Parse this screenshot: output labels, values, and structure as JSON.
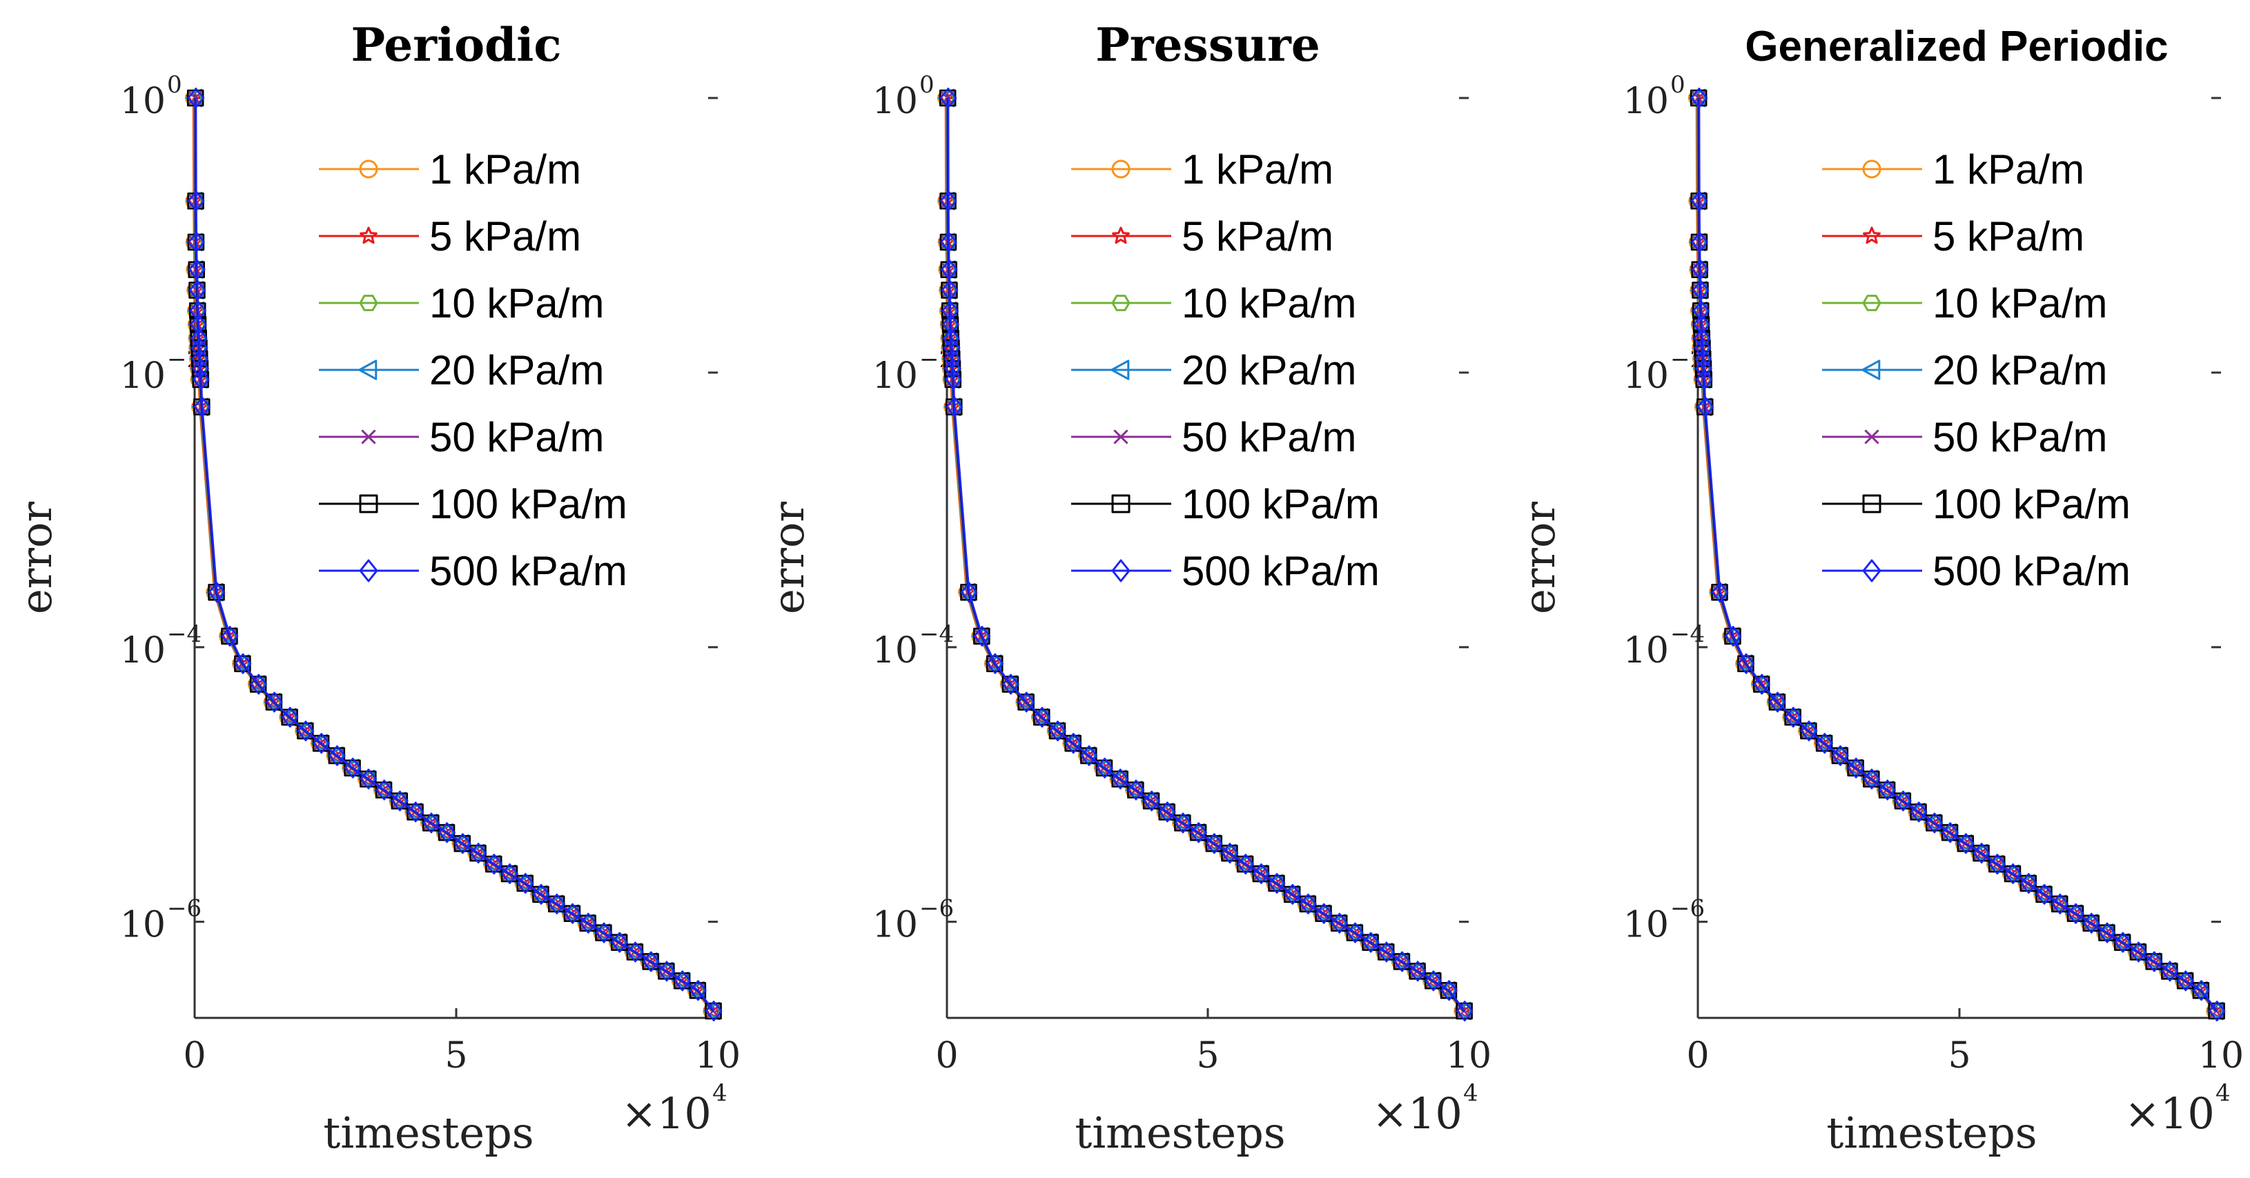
{
  "chart_data": [
    {
      "type": "line",
      "title": "Periodic",
      "xlabel": "timesteps",
      "x_multiplier": "×10",
      "x_multiplier_exp": "4",
      "ylabel": "error",
      "yscale": "log",
      "xlim": [
        0,
        10
      ],
      "ylim_log10": [
        -6.7,
        0
      ],
      "x_ticks": [
        {
          "v": 0,
          "label": "0"
        },
        {
          "v": 5,
          "label": "5"
        },
        {
          "v": 10,
          "label": "10"
        }
      ],
      "y_ticks": [
        {
          "v": 0,
          "base": "10",
          "exp": "0"
        },
        {
          "v": -2,
          "base": "10",
          "exp": "−2"
        },
        {
          "v": -4,
          "base": "10",
          "exp": "−4"
        },
        {
          "v": -6,
          "base": "10",
          "exp": "−6"
        }
      ],
      "legend_position": "top-right",
      "series": [
        {
          "name": "1 kPa/m",
          "color": "#f7941d",
          "marker": "circle"
        },
        {
          "name": "5 kPa/m",
          "color": "#e8191b",
          "marker": "star"
        },
        {
          "name": "10 kPa/m",
          "color": "#6fb534",
          "marker": "hexagon"
        },
        {
          "name": "20 kPa/m",
          "color": "#1c82d0",
          "marker": "triangle-left"
        },
        {
          "name": "50 kPa/m",
          "color": "#8b2f98",
          "marker": "x"
        },
        {
          "name": "100 kPa/m",
          "color": "#000000",
          "marker": "square"
        },
        {
          "name": "500 kPa/m",
          "color": "#1a24f5",
          "marker": "diamond"
        }
      ],
      "x": [
        0,
        0.005,
        0.01,
        0.02,
        0.03,
        0.04,
        0.05,
        0.06,
        0.07,
        0.08,
        0.09,
        0.1,
        0.12,
        0.4,
        0.65,
        0.9,
        1.2,
        1.5,
        1.8,
        2.1,
        2.4,
        2.7,
        3.0,
        3.3,
        3.6,
        3.9,
        4.2,
        4.5,
        4.8,
        5.1,
        5.4,
        5.7,
        6.0,
        6.3,
        6.6,
        6.9,
        7.2,
        7.5,
        7.8,
        8.1,
        8.4,
        8.7,
        9.0,
        9.3,
        9.6,
        9.9
      ],
      "log10_error": [
        0,
        -0.75,
        -1.05,
        -1.25,
        -1.4,
        -1.55,
        -1.65,
        -1.75,
        -1.82,
        -1.9,
        -1.97,
        -2.05,
        -2.25,
        -3.6,
        -3.92,
        -4.12,
        -4.27,
        -4.4,
        -4.51,
        -4.61,
        -4.7,
        -4.79,
        -4.88,
        -4.96,
        -5.04,
        -5.12,
        -5.2,
        -5.28,
        -5.35,
        -5.43,
        -5.5,
        -5.58,
        -5.65,
        -5.72,
        -5.8,
        -5.87,
        -5.94,
        -6.01,
        -6.08,
        -6.15,
        -6.22,
        -6.29,
        -6.36,
        -6.43,
        -6.5,
        -6.65
      ]
    },
    {
      "type": "line",
      "title": "Pressure",
      "xlabel": "timesteps",
      "x_multiplier": "×10",
      "x_multiplier_exp": "4",
      "ylabel": "error",
      "yscale": "log",
      "xlim": [
        0,
        10
      ],
      "ylim_log10": [
        -6.7,
        0
      ],
      "x_ticks": [
        {
          "v": 0,
          "label": "0"
        },
        {
          "v": 5,
          "label": "5"
        },
        {
          "v": 10,
          "label": "10"
        }
      ],
      "y_ticks": [
        {
          "v": 0,
          "base": "10",
          "exp": "0"
        },
        {
          "v": -2,
          "base": "10",
          "exp": "−2"
        },
        {
          "v": -4,
          "base": "10",
          "exp": "−4"
        },
        {
          "v": -6,
          "base": "10",
          "exp": "−6"
        }
      ],
      "legend_position": "top-right",
      "series": [
        {
          "name": "1 kPa/m",
          "color": "#f7941d",
          "marker": "circle"
        },
        {
          "name": "5 kPa/m",
          "color": "#e8191b",
          "marker": "star"
        },
        {
          "name": "10 kPa/m",
          "color": "#6fb534",
          "marker": "hexagon"
        },
        {
          "name": "20 kPa/m",
          "color": "#1c82d0",
          "marker": "triangle-left"
        },
        {
          "name": "50 kPa/m",
          "color": "#8b2f98",
          "marker": "x"
        },
        {
          "name": "100 kPa/m",
          "color": "#000000",
          "marker": "square"
        },
        {
          "name": "500 kPa/m",
          "color": "#1a24f5",
          "marker": "diamond"
        }
      ],
      "x": [
        0,
        0.005,
        0.01,
        0.02,
        0.03,
        0.04,
        0.05,
        0.06,
        0.07,
        0.08,
        0.09,
        0.1,
        0.12,
        0.4,
        0.65,
        0.9,
        1.2,
        1.5,
        1.8,
        2.1,
        2.4,
        2.7,
        3.0,
        3.3,
        3.6,
        3.9,
        4.2,
        4.5,
        4.8,
        5.1,
        5.4,
        5.7,
        6.0,
        6.3,
        6.6,
        6.9,
        7.2,
        7.5,
        7.8,
        8.1,
        8.4,
        8.7,
        9.0,
        9.3,
        9.6,
        9.9
      ],
      "log10_error": [
        0,
        -0.75,
        -1.05,
        -1.25,
        -1.4,
        -1.55,
        -1.65,
        -1.75,
        -1.82,
        -1.9,
        -1.97,
        -2.05,
        -2.25,
        -3.6,
        -3.92,
        -4.12,
        -4.27,
        -4.4,
        -4.51,
        -4.61,
        -4.7,
        -4.79,
        -4.88,
        -4.96,
        -5.04,
        -5.12,
        -5.2,
        -5.28,
        -5.35,
        -5.43,
        -5.5,
        -5.58,
        -5.65,
        -5.72,
        -5.8,
        -5.87,
        -5.94,
        -6.01,
        -6.08,
        -6.15,
        -6.22,
        -6.29,
        -6.36,
        -6.43,
        -6.5,
        -6.65
      ]
    },
    {
      "type": "line",
      "title": "Generalized Periodic",
      "xlabel": "timesteps",
      "x_multiplier": "×10",
      "x_multiplier_exp": "4",
      "ylabel": "error",
      "yscale": "log",
      "xlim": [
        0,
        10
      ],
      "ylim_log10": [
        -6.7,
        0
      ],
      "x_ticks": [
        {
          "v": 0,
          "label": "0"
        },
        {
          "v": 5,
          "label": "5"
        },
        {
          "v": 10,
          "label": "10"
        }
      ],
      "y_ticks": [
        {
          "v": 0,
          "base": "10",
          "exp": "0"
        },
        {
          "v": -2,
          "base": "10",
          "exp": "−2"
        },
        {
          "v": -4,
          "base": "10",
          "exp": "−4"
        },
        {
          "v": -6,
          "base": "10",
          "exp": "−6"
        }
      ],
      "legend_position": "top-right",
      "series": [
        {
          "name": "1 kPa/m",
          "color": "#f7941d",
          "marker": "circle"
        },
        {
          "name": "5 kPa/m",
          "color": "#e8191b",
          "marker": "star"
        },
        {
          "name": "10 kPa/m",
          "color": "#6fb534",
          "marker": "hexagon"
        },
        {
          "name": "20 kPa/m",
          "color": "#1c82d0",
          "marker": "triangle-left"
        },
        {
          "name": "50 kPa/m",
          "color": "#8b2f98",
          "marker": "x"
        },
        {
          "name": "100 kPa/m",
          "color": "#000000",
          "marker": "square"
        },
        {
          "name": "500 kPa/m",
          "color": "#1a24f5",
          "marker": "diamond"
        }
      ],
      "x": [
        0,
        0.005,
        0.01,
        0.02,
        0.03,
        0.04,
        0.05,
        0.06,
        0.07,
        0.08,
        0.09,
        0.1,
        0.12,
        0.4,
        0.65,
        0.9,
        1.2,
        1.5,
        1.8,
        2.1,
        2.4,
        2.7,
        3.0,
        3.3,
        3.6,
        3.9,
        4.2,
        4.5,
        4.8,
        5.1,
        5.4,
        5.7,
        6.0,
        6.3,
        6.6,
        6.9,
        7.2,
        7.5,
        7.8,
        8.1,
        8.4,
        8.7,
        9.0,
        9.3,
        9.6,
        9.9
      ],
      "log10_error": [
        0,
        -0.75,
        -1.05,
        -1.25,
        -1.4,
        -1.55,
        -1.65,
        -1.75,
        -1.82,
        -1.9,
        -1.97,
        -2.05,
        -2.25,
        -3.6,
        -3.92,
        -4.12,
        -4.27,
        -4.4,
        -4.51,
        -4.61,
        -4.7,
        -4.79,
        -4.88,
        -4.96,
        -5.04,
        -5.12,
        -5.2,
        -5.28,
        -5.35,
        -5.43,
        -5.5,
        -5.58,
        -5.65,
        -5.72,
        -5.8,
        -5.87,
        -5.94,
        -6.01,
        -6.08,
        -6.15,
        -6.22,
        -6.29,
        -6.36,
        -6.43,
        -6.5,
        -6.65
      ]
    }
  ]
}
